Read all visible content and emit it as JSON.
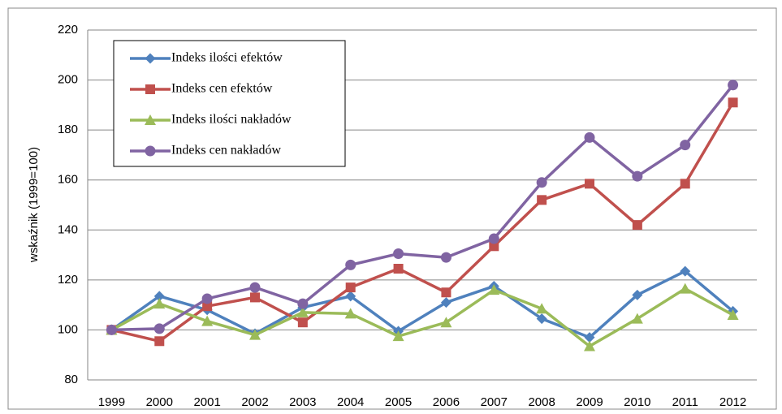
{
  "chart_data": {
    "type": "line",
    "y_label": "wskaźnik (1999=100)",
    "categories": [
      "1999",
      "2000",
      "2001",
      "2002",
      "2003",
      "2004",
      "2005",
      "2006",
      "2007",
      "2008",
      "2009",
      "2010",
      "2011",
      "2012"
    ],
    "series": [
      {
        "name": "Indeks ilości efektów",
        "color": "#4f81bd",
        "values": [
          100,
          113.5,
          108,
          98.5,
          109,
          113.5,
          99.5,
          111,
          117.5,
          104.5,
          97,
          114,
          123.5,
          107.5
        ]
      },
      {
        "name": "Indeks cen efektów",
        "color": "#c0504d",
        "values": [
          100,
          95.5,
          109.5,
          113,
          103,
          117,
          124.5,
          115,
          133.5,
          152,
          158.5,
          142,
          158.5,
          191
        ]
      },
      {
        "name": "Indeks ilości nakładów",
        "color": "#9bbb59",
        "values": [
          100,
          110.5,
          103.5,
          98,
          107,
          106.5,
          97.5,
          103,
          116,
          108.5,
          93.5,
          104.5,
          116.5,
          106
        ]
      },
      {
        "name": "Indeks cen nakładów",
        "color": "#8064a2",
        "values": [
          100,
          100.5,
          112.5,
          117,
          110.5,
          126,
          130.5,
          129,
          136.5,
          159,
          177,
          161.5,
          174,
          198
        ]
      }
    ],
    "ylim": [
      80,
      220
    ],
    "yticks": [
      80,
      100,
      120,
      140,
      160,
      180,
      200,
      220
    ],
    "grid": true,
    "legend": "upper left"
  }
}
